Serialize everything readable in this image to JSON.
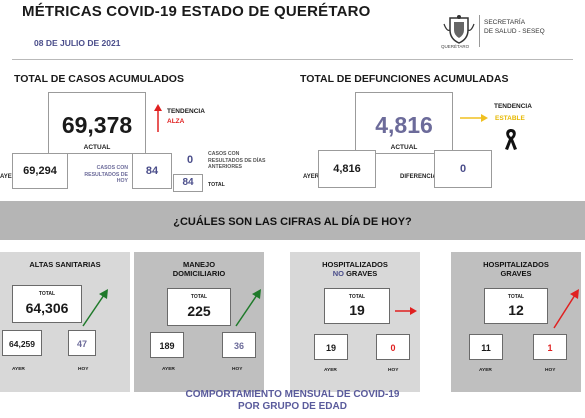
{
  "header": {
    "title": "MÉTRICAS COVID-19 ESTADO DE QUERÉTARO",
    "date": "08 DE JULIO DE 2021",
    "agency_line1": "SECRETARÍA",
    "agency_line2": "DE SALUD - SESEQ",
    "logo_word": "QUERÉTARO",
    "logo_icon": "state-seal-icon"
  },
  "cases": {
    "heading": "TOTAL DE CASOS ACUMULADOS",
    "total": "69,378",
    "total_label": "ACTUAL",
    "trend_label": "TENDENCIA",
    "trend_value": "ALZA",
    "trend_color": "#e02020",
    "yesterday_label": "AYER",
    "yesterday": "69,294",
    "results_label": "CASOS CON RESULTADOS DE HOY",
    "results_today": "84",
    "prev_label": "CASOS CON RESULTADOS DE DÍAS ANTERIORES",
    "prev_days": "0",
    "sum_total": "84",
    "sum_label": "TOTAL"
  },
  "deaths": {
    "heading": "TOTAL DE DEFUNCIONES ACUMULADAS",
    "total": "4,816",
    "total_label": "ACTUAL",
    "trend_label": "TENDENCIA",
    "trend_value": "ESTABLE",
    "trend_color": "#f0c020",
    "yesterday_label": "AYER",
    "yesterday": "4,816",
    "diff_label": "DIFERENCIA",
    "diff": "0",
    "ribbon_icon": "mourning-ribbon-icon"
  },
  "banner": {
    "text": "¿CUÁLES SON LAS CIFRAS AL DÍA DE HOY?"
  },
  "cards": [
    {
      "title1": "ALTAS SANITARIAS",
      "title2": "",
      "total_label": "TOTAL",
      "total": "64,306",
      "yesterday": "64,259",
      "today": "47",
      "yesterday_label": "AYER",
      "today_label": "HOY",
      "arrow": "up",
      "arrow_color": "#1f7a2a"
    },
    {
      "title1": "MANEJO",
      "title2": "DOMICILIARIO",
      "total_label": "TOTAL",
      "total": "225",
      "yesterday": "189",
      "today": "36",
      "yesterday_label": "AYER",
      "today_label": "HOY",
      "arrow": "up",
      "arrow_color": "#1f7a2a"
    },
    {
      "title1": "HOSPITALIZADOS",
      "title2_a": "NO",
      "title2_b": " GRAVES",
      "total_label": "TOTAL",
      "total": "19",
      "yesterday": "19",
      "today": "0",
      "yesterday_label": "AYER",
      "today_label": "HOY",
      "arrow": "right",
      "arrow_color": "#e02020"
    },
    {
      "title1": "HOSPITALIZADOS",
      "title2": "GRAVES",
      "total_label": "TOTAL",
      "total": "12",
      "yesterday": "11",
      "today": "1",
      "yesterday_label": "AYER",
      "today_label": "HOY",
      "arrow": "up",
      "arrow_color": "#e02020"
    }
  ],
  "footer": {
    "line1": "COMPORTAMIENTO MENSUAL DE COVID-19",
    "line2": "POR GRUPO DE EDAD"
  }
}
